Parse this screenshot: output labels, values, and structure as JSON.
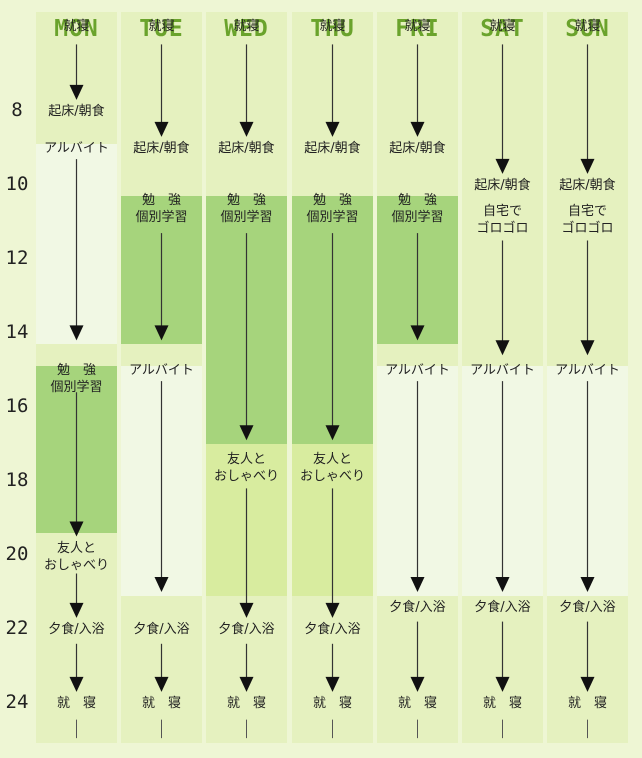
{
  "colors": {
    "page": "#eef6d4",
    "column": "#e5f1bf",
    "work": "#f1f8e4",
    "study": "#a6d47c",
    "mid": "#d8ec9f",
    "header": "#6aa32c"
  },
  "hours": [
    "8",
    "10",
    "12",
    "14",
    "16",
    "18",
    "20",
    "22",
    "24"
  ],
  "days": [
    {
      "name": "MON",
      "blocks": [
        {
          "start": 8.9,
          "end": 14.3,
          "kind": "work"
        },
        {
          "start": 14.9,
          "end": 19.4,
          "kind": "study"
        }
      ],
      "labels": [
        {
          "text": "就寝",
          "at": 5.7
        },
        {
          "text": "起床/朝食",
          "at": 8.0
        },
        {
          "text": "アルバイト",
          "at": 9.0
        },
        {
          "text": "勉　強\n個別学習",
          "at": 15.0
        },
        {
          "text": "友人と\nおしゃべり",
          "at": 19.8
        },
        {
          "text": "夕食/入浴",
          "at": 22.0
        },
        {
          "text": "就　寝",
          "at": 24.0
        }
      ],
      "arrows": [
        {
          "from": 6.2,
          "to": 7.7
        },
        {
          "from": 9.3,
          "to": 14.2
        },
        {
          "from": 15.6,
          "to": 19.5
        },
        {
          "from": 20.5,
          "to": 21.7
        },
        {
          "from": 22.4,
          "to": 23.7
        }
      ]
    },
    {
      "name": "TUE",
      "blocks": [
        {
          "start": 10.3,
          "end": 14.3,
          "kind": "study"
        },
        {
          "start": 14.9,
          "end": 21.1,
          "kind": "work"
        }
      ],
      "labels": [
        {
          "text": "就寝",
          "at": 5.7
        },
        {
          "text": "起床/朝食",
          "at": 9.0
        },
        {
          "text": "勉　強\n個別学習",
          "at": 10.4
        },
        {
          "text": "アルバイト",
          "at": 15.0
        },
        {
          "text": "夕食/入浴",
          "at": 22.0
        },
        {
          "text": "就　寝",
          "at": 24.0
        }
      ],
      "arrows": [
        {
          "from": 6.2,
          "to": 8.7
        },
        {
          "from": 11.3,
          "to": 14.2
        },
        {
          "from": 15.3,
          "to": 21.0
        },
        {
          "from": 22.4,
          "to": 23.7
        }
      ]
    },
    {
      "name": "WED",
      "blocks": [
        {
          "start": 10.3,
          "end": 17.0,
          "kind": "study"
        },
        {
          "start": 17.0,
          "end": 21.1,
          "kind": "mid"
        }
      ],
      "labels": [
        {
          "text": "就寝",
          "at": 5.7
        },
        {
          "text": "起床/朝食",
          "at": 9.0
        },
        {
          "text": "勉　強\n個別学習",
          "at": 10.4
        },
        {
          "text": "友人と\nおしゃべり",
          "at": 17.4
        },
        {
          "text": "夕食/入浴",
          "at": 22.0
        },
        {
          "text": "就　寝",
          "at": 24.0
        }
      ],
      "arrows": [
        {
          "from": 6.2,
          "to": 8.7
        },
        {
          "from": 11.3,
          "to": 16.9
        },
        {
          "from": 18.2,
          "to": 21.7
        },
        {
          "from": 22.4,
          "to": 23.7
        }
      ]
    },
    {
      "name": "THU",
      "blocks": [
        {
          "start": 10.3,
          "end": 17.0,
          "kind": "study"
        },
        {
          "start": 17.0,
          "end": 21.1,
          "kind": "mid"
        }
      ],
      "labels": [
        {
          "text": "就寝",
          "at": 5.7
        },
        {
          "text": "起床/朝食",
          "at": 9.0
        },
        {
          "text": "勉　強\n個別学習",
          "at": 10.4
        },
        {
          "text": "友人と\nおしゃべり",
          "at": 17.4
        },
        {
          "text": "夕食/入浴",
          "at": 22.0
        },
        {
          "text": "就　寝",
          "at": 24.0
        }
      ],
      "arrows": [
        {
          "from": 6.2,
          "to": 8.7
        },
        {
          "from": 11.3,
          "to": 16.9
        },
        {
          "from": 18.2,
          "to": 21.7
        },
        {
          "from": 22.4,
          "to": 23.7
        }
      ]
    },
    {
      "name": "FRI",
      "blocks": [
        {
          "start": 10.3,
          "end": 14.3,
          "kind": "study"
        },
        {
          "start": 14.9,
          "end": 21.1,
          "kind": "work"
        }
      ],
      "labels": [
        {
          "text": "就寝",
          "at": 5.7
        },
        {
          "text": "起床/朝食",
          "at": 9.0
        },
        {
          "text": "勉　強\n個別学習",
          "at": 10.4
        },
        {
          "text": "アルバイト",
          "at": 15.0
        },
        {
          "text": "夕食/入浴",
          "at": 21.4
        },
        {
          "text": "就　寝",
          "at": 24.0
        }
      ],
      "arrows": [
        {
          "from": 6.2,
          "to": 8.7
        },
        {
          "from": 11.3,
          "to": 14.2
        },
        {
          "from": 15.3,
          "to": 21.0
        },
        {
          "from": 21.8,
          "to": 23.7
        }
      ]
    },
    {
      "name": "SAT",
      "blocks": [
        {
          "start": 14.9,
          "end": 21.1,
          "kind": "work"
        }
      ],
      "labels": [
        {
          "text": "就寝",
          "at": 5.7
        },
        {
          "text": "起床/朝食",
          "at": 10.0
        },
        {
          "text": "自宅で\nゴロゴロ",
          "at": 10.7
        },
        {
          "text": "アルバイト",
          "at": 15.0
        },
        {
          "text": "夕食/入浴",
          "at": 21.4
        },
        {
          "text": "就　寝",
          "at": 24.0
        }
      ],
      "arrows": [
        {
          "from": 6.2,
          "to": 9.7
        },
        {
          "from": 11.5,
          "to": 14.6
        },
        {
          "from": 15.3,
          "to": 21.0
        },
        {
          "from": 21.8,
          "to": 23.7
        }
      ]
    },
    {
      "name": "SUN",
      "blocks": [
        {
          "start": 14.9,
          "end": 21.1,
          "kind": "work"
        }
      ],
      "labels": [
        {
          "text": "就寝",
          "at": 5.7
        },
        {
          "text": "起床/朝食",
          "at": 10.0
        },
        {
          "text": "自宅で\nゴロゴロ",
          "at": 10.7
        },
        {
          "text": "アルバイト",
          "at": 15.0
        },
        {
          "text": "夕食/入浴",
          "at": 21.4
        },
        {
          "text": "就　寝",
          "at": 24.0
        }
      ],
      "arrows": [
        {
          "from": 6.2,
          "to": 9.7
        },
        {
          "from": 11.5,
          "to": 14.6
        },
        {
          "from": 15.3,
          "to": 21.0
        },
        {
          "from": 21.8,
          "to": 23.7
        }
      ]
    }
  ]
}
